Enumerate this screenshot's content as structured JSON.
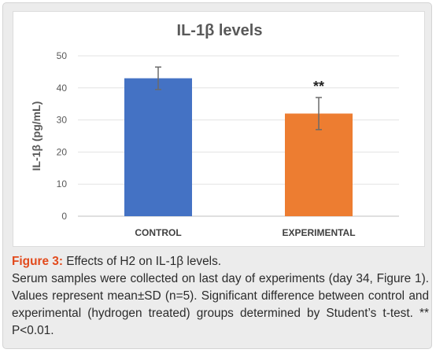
{
  "chart_data": {
    "type": "bar",
    "title": "IL-1β levels",
    "ylabel": "IL-1β (pg/mL)",
    "xlabel": "",
    "categories": [
      "CONTROL",
      "EXPERIMENTAL"
    ],
    "values": [
      43,
      32
    ],
    "errors": [
      3.5,
      5
    ],
    "annotations": [
      "",
      "**"
    ],
    "colors": [
      "#4472c4",
      "#ed7d31"
    ],
    "ylim": [
      0,
      50
    ],
    "yticks": [
      0,
      10,
      20,
      30,
      40,
      50
    ],
    "grid": true,
    "legend": "none"
  },
  "caption": {
    "figure_label": "Figure 3:",
    "figure_title": "Effects of H2 on IL-1β levels.",
    "body": "Serum samples were collected on last day of experiments (day 34, Figure 1). Values represent mean±SD (n=5). Significant difference between control and experimental (hydrogen treated) groups determined by Student’s t-test. ** P<0.01."
  }
}
